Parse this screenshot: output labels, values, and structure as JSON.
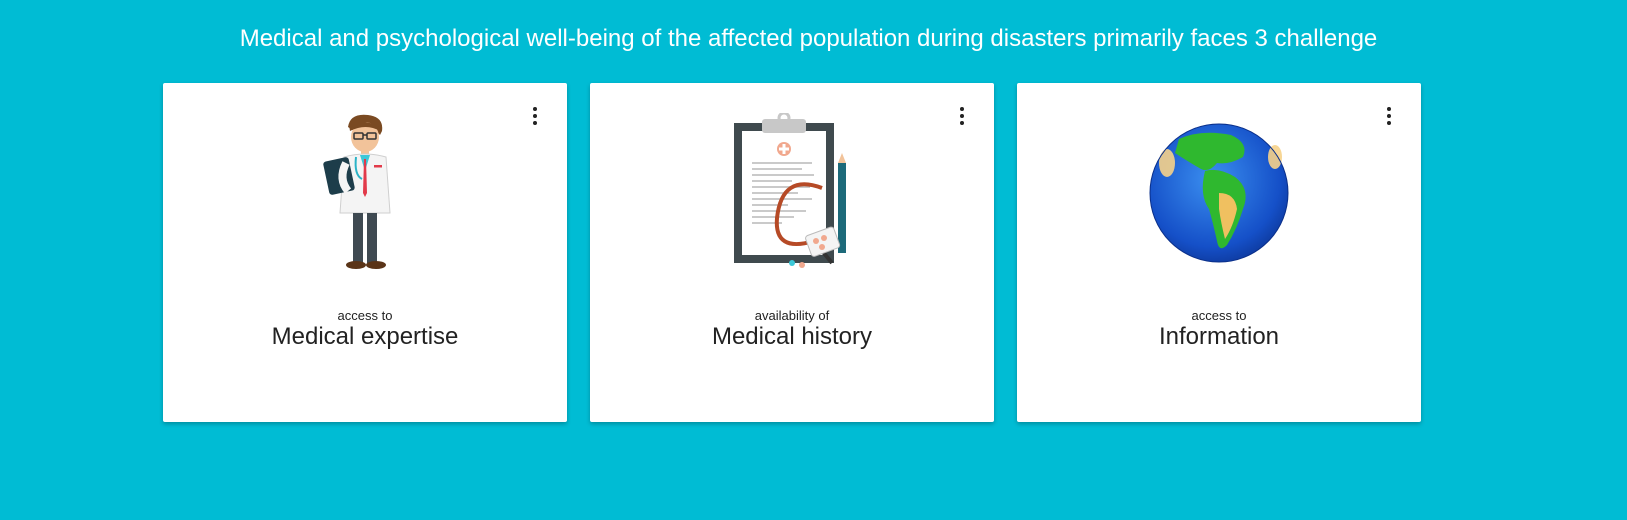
{
  "headline": "Medical and psychological well-being of the affected population during disasters primarily faces 3 challenge",
  "cards": [
    {
      "icon": "doctor-icon",
      "prefix": "access to",
      "title": "Medical expertise"
    },
    {
      "icon": "clipboard-stethoscope-icon",
      "prefix": "availability of",
      "title": "Medical history"
    },
    {
      "icon": "globe-icon",
      "prefix": "access to",
      "title": "Information"
    }
  ],
  "colors": {
    "background": "#00bcd4",
    "card": "#ffffff"
  }
}
